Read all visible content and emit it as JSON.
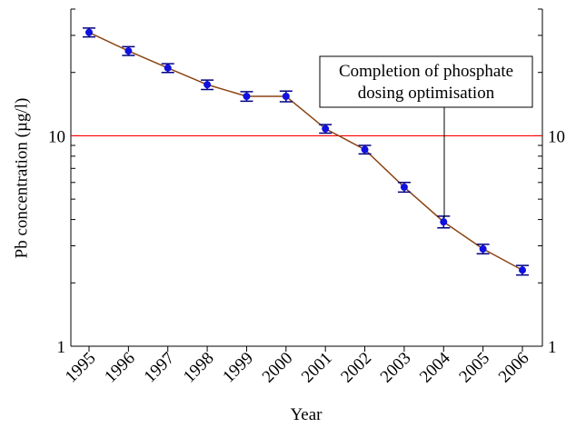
{
  "chart_data": {
    "type": "line",
    "ylabel": "Pb concentration (µg/l)",
    "xlabel": "Year",
    "categories": [
      "1995",
      "1996",
      "1997",
      "1998",
      "1999",
      "2000",
      "2001",
      "2002",
      "2003",
      "2004",
      "2005",
      "2006"
    ],
    "values": [
      31,
      25.3,
      21,
      17.5,
      15.4,
      15.4,
      10.8,
      8.6,
      5.7,
      3.9,
      2.9,
      2.3
    ],
    "errors": [
      1.5,
      1.2,
      1,
      0.9,
      0.8,
      0.9,
      0.5,
      0.4,
      0.3,
      0.25,
      0.15,
      0.12
    ],
    "marker_color": "#1010e0",
    "line_color": "#8b4513",
    "error_color": "#000080",
    "ylim": [
      1,
      40
    ],
    "log_y": true,
    "yticks": [
      1,
      10
    ],
    "minor_yticks": [
      2,
      3,
      4,
      5,
      6,
      7,
      8,
      9,
      20,
      30,
      40
    ],
    "hline": {
      "value": 10,
      "color": "#ff0000"
    },
    "annotation": [
      "Completion of phosphate",
      "dosing optimisation"
    ]
  }
}
